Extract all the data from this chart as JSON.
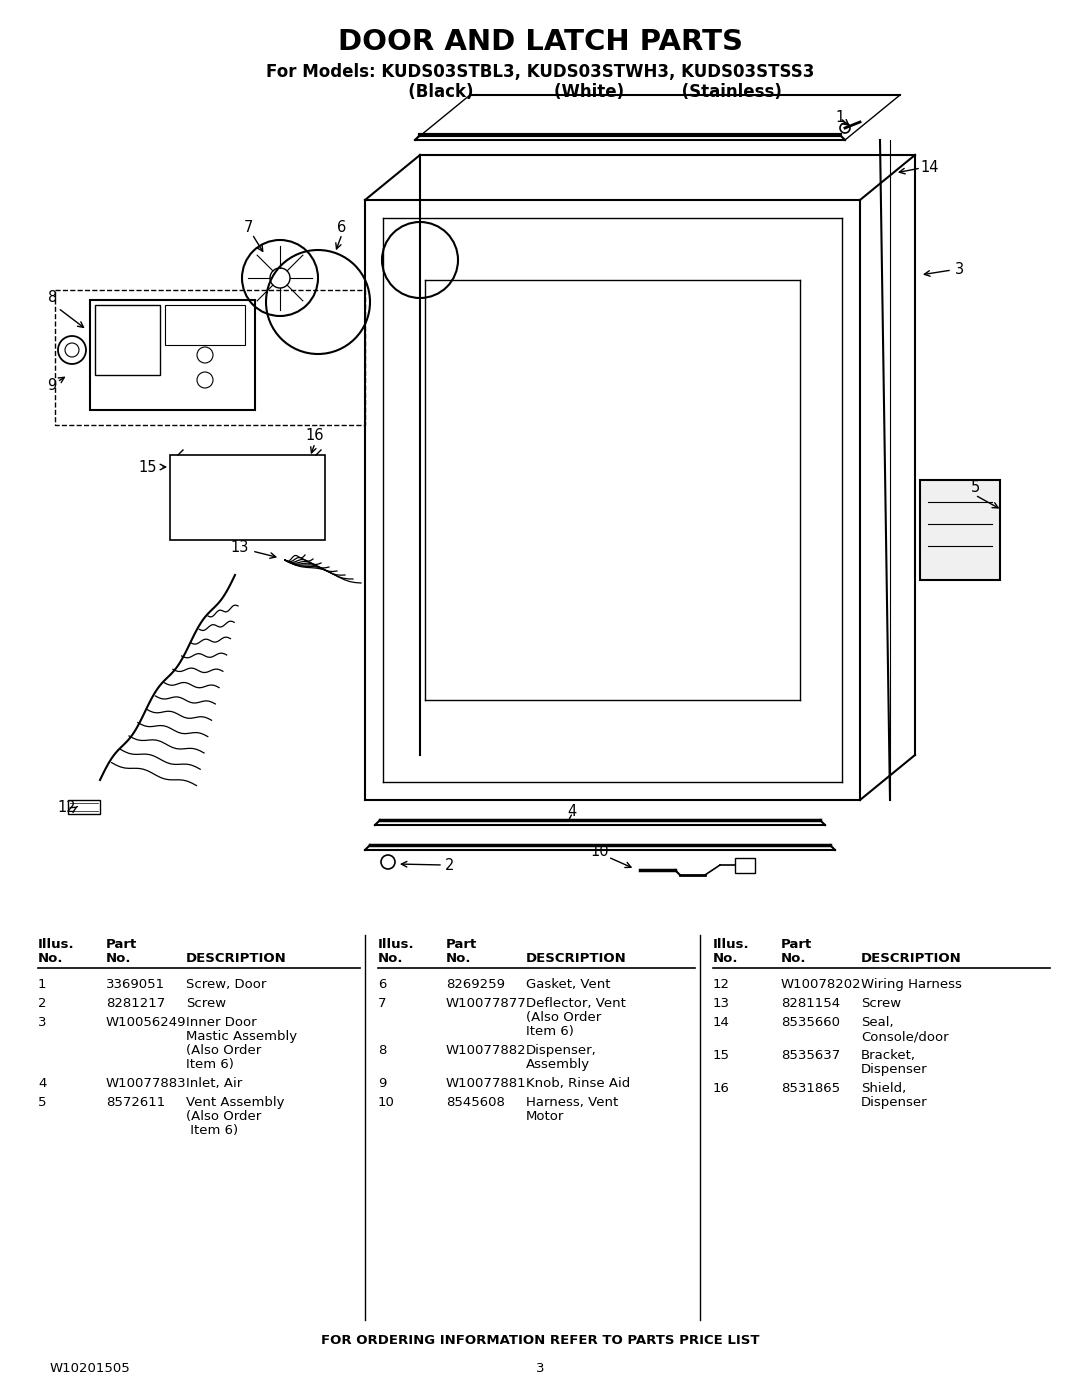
{
  "title": "DOOR AND LATCH PARTS",
  "subtitle1": "For Models: KUDS03STBL3, KUDS03STWH3, KUDS03STSS3",
  "subtitle2": "                   (Black)              (White)          (Stainless)",
  "bg_color": "#ffffff",
  "title_fontsize": 21,
  "subtitle_fontsize": 12,
  "footer_left": "W10201505",
  "footer_center": "3",
  "footer_note": "FOR ORDERING INFORMATION REFER TO PARTS PRICE LIST",
  "parts_col1": [
    [
      "1",
      "3369051",
      "Screw, Door"
    ],
    [
      "2",
      "8281217",
      "Screw"
    ],
    [
      "3",
      "W10056249",
      "Inner Door\nMastic Assembly\n(Also Order\nItem 6)"
    ],
    [
      "4",
      "W10077883",
      "Inlet, Air"
    ],
    [
      "5",
      "8572611",
      "Vent Assembly\n(Also Order\n Item 6)"
    ]
  ],
  "parts_col2": [
    [
      "6",
      "8269259",
      "Gasket, Vent"
    ],
    [
      "7",
      "W10077877",
      "Deflector, Vent\n(Also Order\nItem 6)"
    ],
    [
      "8",
      "W10077882",
      "Dispenser,\nAssembly"
    ],
    [
      "9",
      "W10077881",
      "Knob, Rinse Aid"
    ],
    [
      "10",
      "8545608",
      "Harness, Vent\nMotor"
    ]
  ],
  "parts_col3": [
    [
      "12",
      "W10078202",
      "Wiring Harness"
    ],
    [
      "13",
      "8281154",
      "Screw"
    ],
    [
      "14",
      "8535660",
      "Seal,\nConsole/door"
    ],
    [
      "15",
      "8535637",
      "Bracket,\nDispenser"
    ],
    [
      "16",
      "8531865",
      "Shield,\nDispenser"
    ]
  ]
}
